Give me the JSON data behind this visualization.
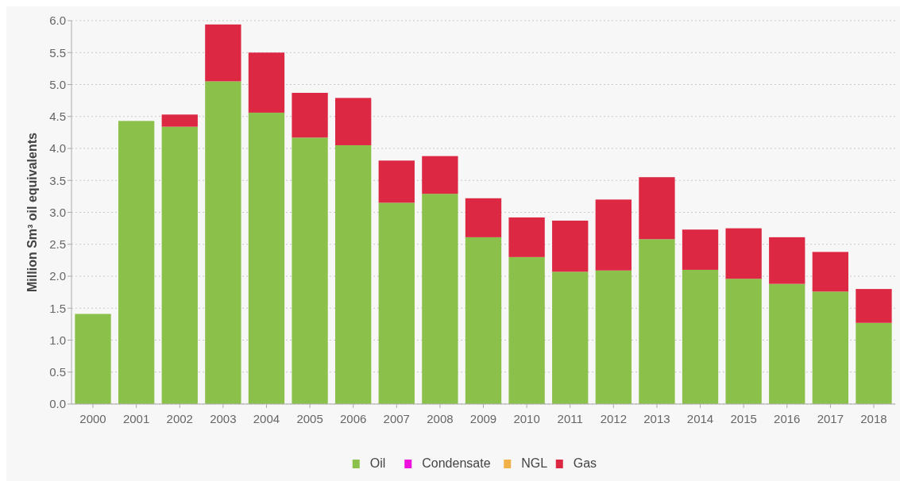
{
  "chart_data": {
    "type": "bar",
    "stacked": true,
    "ylabel": "Million Sm³ oil equivalents",
    "categories": [
      "2000",
      "2001",
      "2002",
      "2003",
      "2004",
      "2005",
      "2006",
      "2007",
      "2008",
      "2009",
      "2010",
      "2011",
      "2012",
      "2013",
      "2014",
      "2015",
      "2016",
      "2017",
      "2018"
    ],
    "series": [
      {
        "name": "Oil",
        "color": "#8bc04b",
        "values": [
          1.41,
          4.43,
          4.34,
          5.05,
          4.56,
          4.17,
          4.05,
          3.15,
          3.29,
          2.61,
          2.3,
          2.07,
          2.09,
          2.58,
          2.1,
          1.96,
          1.88,
          1.76,
          1.27
        ]
      },
      {
        "name": "Condensate",
        "color": "#ee10dd",
        "values": [
          null,
          null,
          null,
          null,
          null,
          null,
          null,
          null,
          null,
          null,
          null,
          null,
          null,
          null,
          null,
          null,
          null,
          null,
          null
        ]
      },
      {
        "name": "NGL",
        "color": "#f0b248",
        "values": [
          null,
          null,
          null,
          null,
          null,
          null,
          null,
          null,
          null,
          null,
          null,
          null,
          null,
          null,
          null,
          null,
          null,
          null,
          null
        ]
      },
      {
        "name": "Gas",
        "color": "#dc2843",
        "values": [
          null,
          null,
          0.19,
          0.89,
          0.94,
          0.7,
          0.74,
          0.66,
          0.59,
          0.61,
          0.62,
          0.8,
          1.11,
          0.97,
          0.63,
          0.79,
          0.73,
          0.62,
          0.53
        ]
      }
    ],
    "ylim": [
      0,
      6
    ],
    "yticks": [
      {
        "value": 0,
        "label": "0.0"
      },
      0.5,
      {
        "value": 1,
        "label": "1.0"
      },
      1.5,
      {
        "value": 2,
        "label": "2.0"
      },
      2.5,
      {
        "value": 3,
        "label": "3.0"
      },
      3.5,
      {
        "value": 4,
        "label": "4.0"
      },
      4.5,
      {
        "value": 5,
        "label": "5.0"
      },
      5.5,
      {
        "value": 6,
        "label": "6.0"
      }
    ],
    "grid": "y",
    "legend": "bottom"
  }
}
